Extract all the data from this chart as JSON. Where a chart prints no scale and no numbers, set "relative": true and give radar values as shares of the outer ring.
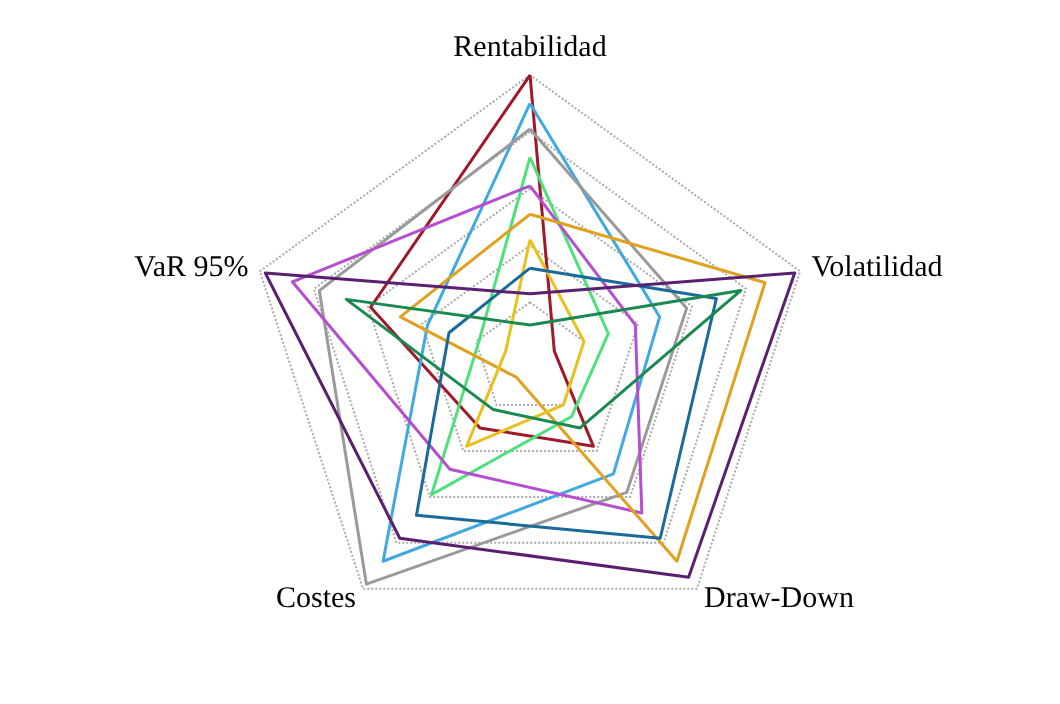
{
  "chart_data": {
    "type": "radar",
    "relative": true,
    "grid": true,
    "marker": "none",
    "line_style": "solid",
    "categories": [
      "Rentabilidad",
      "Volatilidad",
      "Draw-Down",
      "Costes",
      "VaR 95%"
    ],
    "series": [
      {
        "color": "#a0192b",
        "values": [
          1.0,
          0.09,
          0.38,
          0.3,
          0.59
        ]
      },
      {
        "color": "#3fa9e0",
        "values": [
          0.9,
          0.48,
          0.5,
          0.88,
          0.38
        ]
      },
      {
        "color": "#9a9a9a",
        "values": [
          0.81,
          0.58,
          0.58,
          0.98,
          0.78
        ]
      },
      {
        "color": "#4ee07a",
        "values": [
          0.71,
          0.29,
          0.25,
          0.59,
          0.19
        ]
      },
      {
        "color": "#b44fd0",
        "values": [
          0.61,
          0.39,
          0.67,
          0.48,
          0.88
        ]
      },
      {
        "color": "#e0a020",
        "values": [
          0.51,
          0.87,
          0.88,
          0.08,
          0.48
        ]
      },
      {
        "color": "#e8c020",
        "values": [
          0.42,
          0.2,
          0.2,
          0.38,
          0.09
        ]
      },
      {
        "color": "#1a6a9a",
        "values": [
          0.32,
          0.69,
          0.78,
          0.68,
          0.3
        ]
      },
      {
        "color": "#5a2070",
        "values": [
          0.23,
          0.98,
          0.95,
          0.78,
          0.98
        ]
      },
      {
        "color": "#1a8a50",
        "values": [
          0.12,
          0.78,
          0.3,
          0.22,
          0.68
        ]
      }
    ]
  }
}
